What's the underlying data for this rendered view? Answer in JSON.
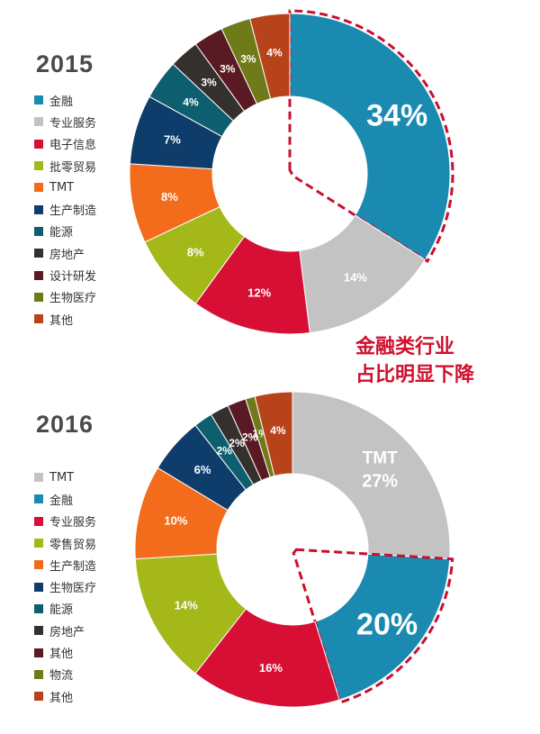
{
  "callout": {
    "line1": "金融类行业",
    "line2": "占比明显下降"
  },
  "chart_data": [
    {
      "type": "pie",
      "title": "2015",
      "categories": [
        "金融",
        "专业服务",
        "电子信息",
        "批零贸易",
        "TMT",
        "生产制造",
        "能源",
        "房地产",
        "设计研发",
        "生物医疗",
        "其他"
      ],
      "values": [
        34,
        14,
        12,
        8,
        8,
        7,
        4,
        3,
        3,
        3,
        4
      ],
      "labels": [
        "34%",
        "14%",
        "12%",
        "8%",
        "8%",
        "7%",
        "4%",
        "3%",
        "3%",
        "3%",
        "4%"
      ],
      "colors": [
        "#1b8ab0",
        "#c3c3c3",
        "#d70f35",
        "#a5b81a",
        "#f26c1c",
        "#0f3d6b",
        "#0d5e6e",
        "#34302d",
        "#5a1a24",
        "#6f7a19",
        "#b7431b"
      ],
      "highlight": "金融"
    },
    {
      "type": "pie",
      "title": "2016",
      "categories": [
        "TMT",
        "金融",
        "专业服务",
        "零售贸易",
        "生产制造",
        "生物医疗",
        "能源",
        "房地产",
        "其他",
        "物流",
        "其他"
      ],
      "values": [
        27,
        20,
        16,
        14,
        10,
        6,
        2,
        2,
        2,
        1,
        4
      ],
      "labels": [
        "TMT 27%",
        "20%",
        "16%",
        "14%",
        "10%",
        "6%",
        "2%",
        "2%",
        "2%",
        "1%",
        "4%"
      ],
      "colors": [
        "#c3c3c3",
        "#1b8ab0",
        "#d70f35",
        "#a5b81a",
        "#f26c1c",
        "#0f3d6b",
        "#0d5e6e",
        "#34302d",
        "#5a1a24",
        "#6f7a19",
        "#b7431b"
      ],
      "highlight": "金融"
    }
  ]
}
